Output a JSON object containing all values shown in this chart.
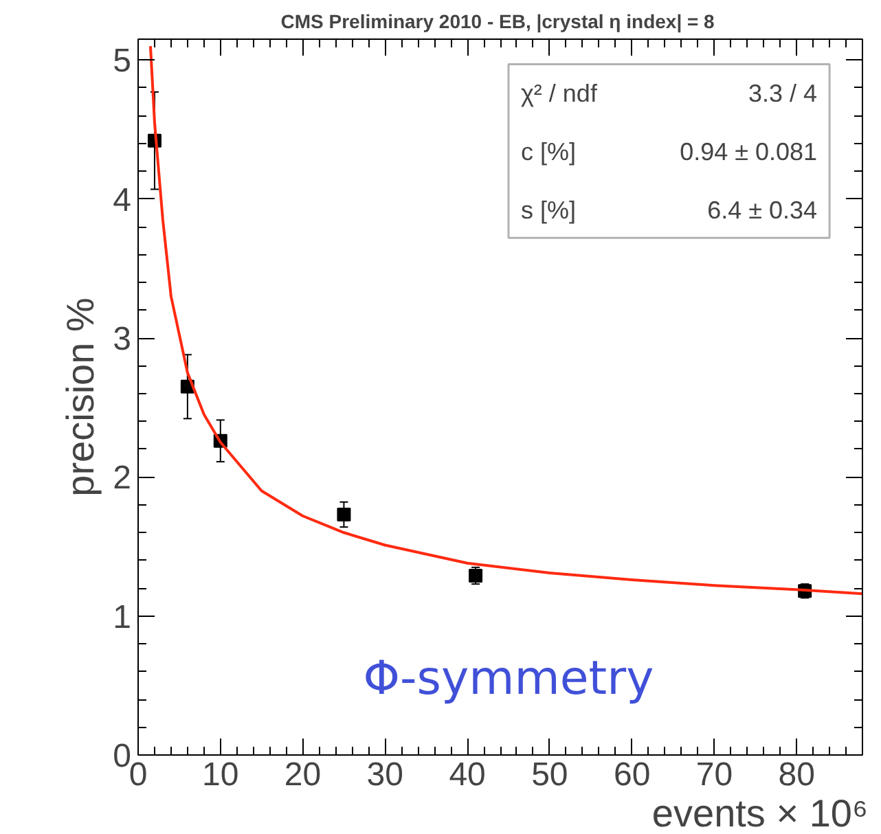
{
  "chart_data": {
    "type": "scatter",
    "title": "CMS Preliminary  2010 - EB, |crystal η index| = 8",
    "xlabel": "events × 10⁶",
    "ylabel": "precision %",
    "xlim": [
      0,
      88
    ],
    "ylim": [
      0,
      5.15
    ],
    "xticks": [
      0,
      10,
      20,
      30,
      40,
      50,
      60,
      70,
      80
    ],
    "yticks": [
      0,
      1,
      2,
      3,
      4,
      5
    ],
    "grid": false,
    "marker": "square",
    "series": [
      {
        "color": "#000000",
        "x": [
          2,
          6,
          10,
          25,
          41,
          81
        ],
        "values": [
          4.42,
          2.65,
          2.26,
          1.73,
          1.29,
          1.18
        ],
        "errors": [
          0.35,
          0.23,
          0.15,
          0.09,
          0.06,
          0.05
        ]
      },
      {
        "type": "line",
        "color": "#ff2a10",
        "marker": "none",
        "line_style": "solid",
        "x": [
          1.5,
          2,
          3,
          4,
          6,
          8,
          10,
          15,
          20,
          25,
          30,
          40,
          50,
          60,
          70,
          80,
          88
        ],
        "values": [
          5.1,
          4.55,
          3.85,
          3.3,
          2.75,
          2.45,
          2.25,
          1.9,
          1.72,
          1.6,
          1.51,
          1.38,
          1.31,
          1.26,
          1.22,
          1.19,
          1.16
        ]
      }
    ],
    "annotations": [
      "χ² / ndf",
      "3.3 / 4",
      "c [%]",
      "0.94 ± 0.081",
      "s [%]",
      "6.4 ± 0.34",
      "Φ-symmetry"
    ]
  }
}
